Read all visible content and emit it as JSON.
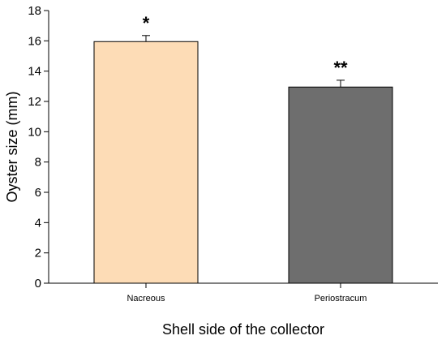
{
  "chart_data": {
    "type": "bar",
    "categories": [
      "Nacreous",
      "Periostracum"
    ],
    "values": [
      15.95,
      12.95
    ],
    "errors": [
      0.4,
      0.45
    ],
    "annotations": [
      "*",
      "**"
    ],
    "colors": [
      "#fddcb6",
      "#6e6e6e"
    ],
    "xlabel": "Shell side of the collector",
    "ylabel": "Oyster size (mm)",
    "ylim": [
      0,
      18
    ],
    "yticks": [
      0,
      2,
      4,
      6,
      8,
      10,
      12,
      14,
      16,
      18
    ],
    "grid": false,
    "legend": "none"
  }
}
